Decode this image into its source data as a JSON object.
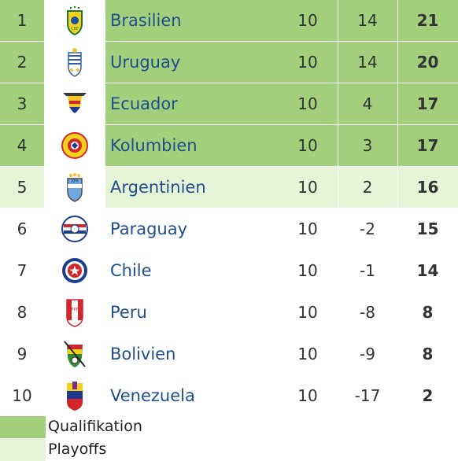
{
  "colors": {
    "qualification": "#a2cf7c",
    "playoffs": "#e6f4d8",
    "none": "#ffffff",
    "team_link": "#1f4f8c"
  },
  "rows": [
    {
      "rank": "1",
      "team": "Brasilien",
      "played": "10",
      "diff": "14",
      "points": "21",
      "status": "qualification",
      "crest": "brazil-crest-icon"
    },
    {
      "rank": "2",
      "team": "Uruguay",
      "played": "10",
      "diff": "14",
      "points": "20",
      "status": "qualification",
      "crest": "uruguay-crest-icon"
    },
    {
      "rank": "3",
      "team": "Ecuador",
      "played": "10",
      "diff": "4",
      "points": "17",
      "status": "qualification",
      "crest": "ecuador-crest-icon"
    },
    {
      "rank": "4",
      "team": "Kolumbien",
      "played": "10",
      "diff": "3",
      "points": "17",
      "status": "qualification",
      "crest": "colombia-crest-icon"
    },
    {
      "rank": "5",
      "team": "Argentinien",
      "played": "10",
      "diff": "2",
      "points": "16",
      "status": "playoffs",
      "crest": "argentina-crest-icon"
    },
    {
      "rank": "6",
      "team": "Paraguay",
      "played": "10",
      "diff": "-2",
      "points": "15",
      "status": "none",
      "crest": "paraguay-crest-icon"
    },
    {
      "rank": "7",
      "team": "Chile",
      "played": "10",
      "diff": "-1",
      "points": "14",
      "status": "none",
      "crest": "chile-crest-icon"
    },
    {
      "rank": "8",
      "team": "Peru",
      "played": "10",
      "diff": "-8",
      "points": "8",
      "status": "none",
      "crest": "peru-crest-icon"
    },
    {
      "rank": "9",
      "team": "Bolivien",
      "played": "10",
      "diff": "-9",
      "points": "8",
      "status": "none",
      "crest": "bolivia-crest-icon"
    },
    {
      "rank": "10",
      "team": "Venezuela",
      "played": "10",
      "diff": "-17",
      "points": "2",
      "status": "none",
      "crest": "venezuela-crest-icon"
    }
  ],
  "legend": {
    "qualification": "Qualifikation",
    "playoffs": "Playoffs"
  }
}
